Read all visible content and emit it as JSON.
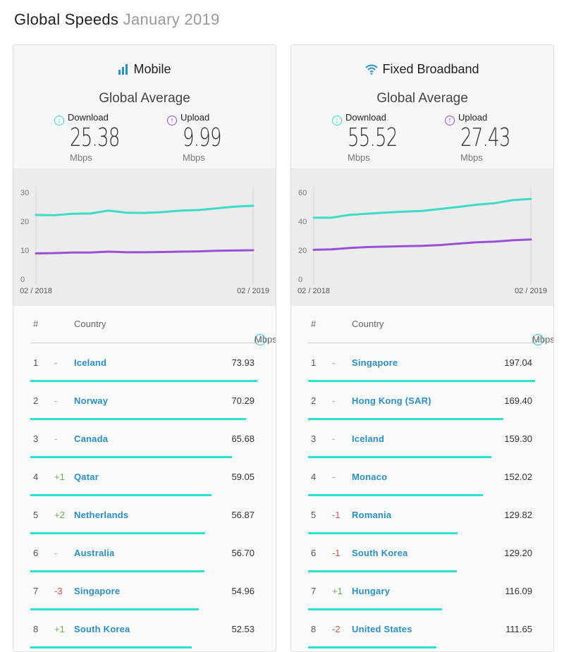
{
  "page": {
    "title": "Global Speeds",
    "date": "January 2019"
  },
  "colors": {
    "download": "#3ddcc8",
    "upload": "#9b4fd6",
    "country_link": "#2b8fc4",
    "bar": "#2ee0d0"
  },
  "panels": [
    {
      "key": "mobile",
      "title": "Mobile",
      "icon": "signal-bars-icon",
      "avg_title": "Global Average",
      "download": {
        "label": "Download",
        "value": "25.38",
        "unit": "Mbps"
      },
      "upload": {
        "label": "Upload",
        "value": "9.99",
        "unit": "Mbps"
      },
      "list_header": {
        "rank": "#",
        "country": "Country",
        "mbps": "Mbps"
      },
      "rows": [
        {
          "rank": "1",
          "change": "-",
          "country": "Iceland",
          "mbps": "73.93"
        },
        {
          "rank": "2",
          "change": "-",
          "country": "Norway",
          "mbps": "70.29"
        },
        {
          "rank": "3",
          "change": "-",
          "country": "Canada",
          "mbps": "65.68"
        },
        {
          "rank": "4",
          "change": "+1",
          "country": "Qatar",
          "mbps": "59.05"
        },
        {
          "rank": "5",
          "change": "+2",
          "country": "Netherlands",
          "mbps": "56.87"
        },
        {
          "rank": "6",
          "change": "-",
          "country": "Australia",
          "mbps": "56.70"
        },
        {
          "rank": "7",
          "change": "-3",
          "country": "Singapore",
          "mbps": "54.96"
        },
        {
          "rank": "8",
          "change": "+1",
          "country": "South Korea",
          "mbps": "52.53"
        }
      ]
    },
    {
      "key": "broadband",
      "title": "Fixed Broadband",
      "icon": "wifi-icon",
      "avg_title": "Global Average",
      "download": {
        "label": "Download",
        "value": "55.52",
        "unit": "Mbps"
      },
      "upload": {
        "label": "Upload",
        "value": "27.43",
        "unit": "Mbps"
      },
      "list_header": {
        "rank": "#",
        "country": "Country",
        "mbps": "Mbps"
      },
      "rows": [
        {
          "rank": "1",
          "change": "-",
          "country": "Singapore",
          "mbps": "197.04"
        },
        {
          "rank": "2",
          "change": "-",
          "country": "Hong Kong (SAR)",
          "mbps": "169.40"
        },
        {
          "rank": "3",
          "change": "-",
          "country": "Iceland",
          "mbps": "159.30"
        },
        {
          "rank": "4",
          "change": "-",
          "country": "Monaco",
          "mbps": "152.02"
        },
        {
          "rank": "5",
          "change": "-1",
          "country": "Romania",
          "mbps": "129.82"
        },
        {
          "rank": "6",
          "change": "-1",
          "country": "South Korea",
          "mbps": "129.20"
        },
        {
          "rank": "7",
          "change": "+1",
          "country": "Hungary",
          "mbps": "116.09"
        },
        {
          "rank": "8",
          "change": "-2",
          "country": "United States",
          "mbps": "111.65"
        }
      ]
    }
  ],
  "chart_data": [
    {
      "type": "line",
      "title": "Mobile",
      "x_tick_labels": [
        "02 / 2018",
        "02 / 2019"
      ],
      "x": [
        "02/2018",
        "03/2018",
        "04/2018",
        "05/2018",
        "06/2018",
        "07/2018",
        "08/2018",
        "09/2018",
        "10/2018",
        "11/2018",
        "12/2018",
        "01/2019",
        "02/2019"
      ],
      "ylim": [
        0,
        30
      ],
      "yticks": [
        0,
        10,
        20,
        30
      ],
      "series": [
        {
          "name": "Download",
          "values": [
            22.2,
            22.1,
            22.6,
            22.7,
            23.7,
            23.0,
            22.9,
            23.2,
            23.7,
            23.9,
            24.5,
            25.1,
            25.38
          ]
        },
        {
          "name": "Upload",
          "values": [
            8.9,
            9.0,
            9.2,
            9.2,
            9.5,
            9.3,
            9.3,
            9.4,
            9.5,
            9.6,
            9.8,
            9.9,
            9.99
          ]
        }
      ]
    },
    {
      "type": "line",
      "title": "Fixed Broadband",
      "x_tick_labels": [
        "02 / 2018",
        "02 / 2019"
      ],
      "x": [
        "02/2018",
        "03/2018",
        "04/2018",
        "05/2018",
        "06/2018",
        "07/2018",
        "08/2018",
        "09/2018",
        "10/2018",
        "11/2018",
        "12/2018",
        "01/2019",
        "02/2019"
      ],
      "ylim": [
        0,
        60
      ],
      "yticks": [
        0,
        20,
        40,
        60
      ],
      "series": [
        {
          "name": "Download",
          "values": [
            42.5,
            42.6,
            44.5,
            45.3,
            46.1,
            46.7,
            47.2,
            48.6,
            50.0,
            51.5,
            52.6,
            54.7,
            55.52
          ]
        },
        {
          "name": "Upload",
          "values": [
            20.3,
            20.6,
            21.6,
            22.2,
            22.5,
            22.8,
            23.0,
            23.6,
            24.6,
            25.5,
            26.0,
            26.9,
            27.43
          ]
        }
      ]
    }
  ]
}
